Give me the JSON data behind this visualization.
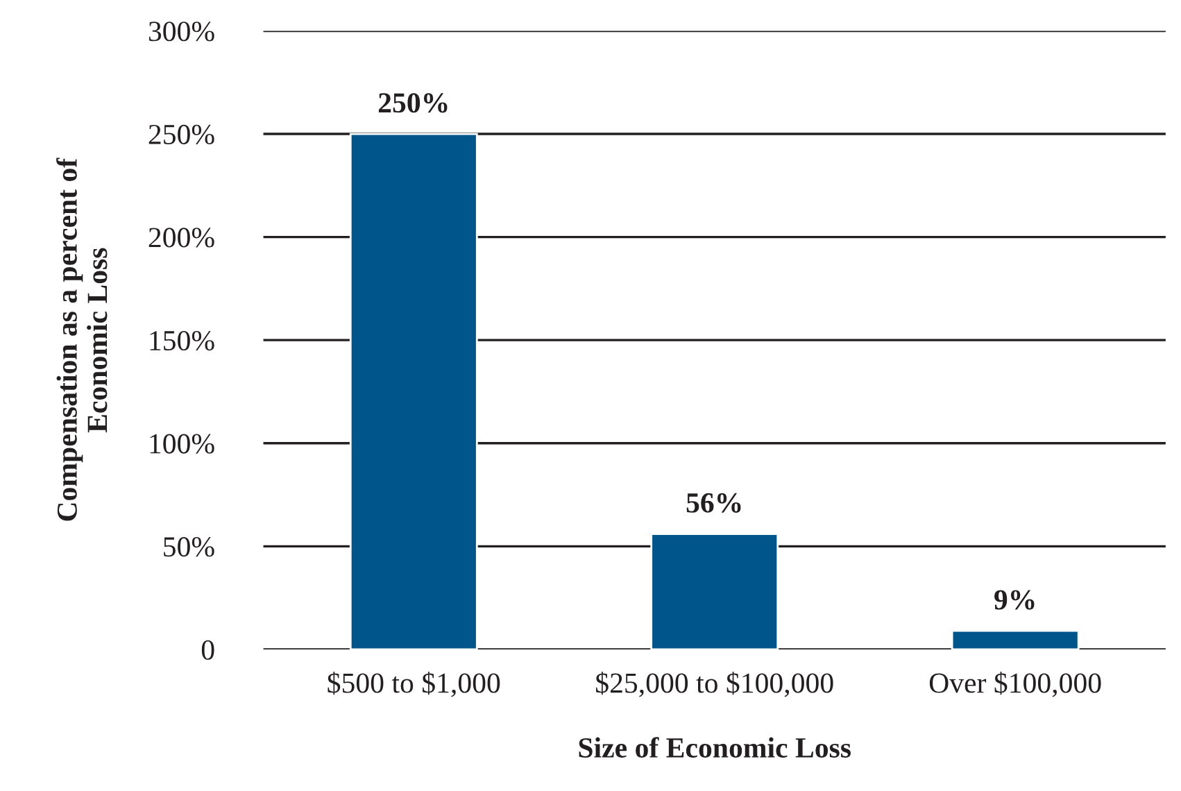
{
  "chart_data": {
    "type": "bar",
    "xlabel": "Size of Economic Loss",
    "ylabel": "Compensation as a percent of\nEconomic Loss",
    "categories": [
      "$500 to $1,000",
      "$25,000 to $100,000",
      "Over $100,000"
    ],
    "values": [
      250,
      56,
      9
    ],
    "value_labels": [
      "250%",
      "56%",
      "9%"
    ],
    "color": "#00558a",
    "ylim": [
      0,
      300
    ],
    "yticks": [
      0,
      {
        "value": 50,
        "label": "50%"
      },
      {
        "value": 100,
        "label": "100%"
      },
      {
        "value": 150,
        "label": "150%"
      },
      {
        "value": 200,
        "label": "200%"
      },
      {
        "value": 250,
        "label": "250%"
      },
      {
        "value": 300,
        "label": "300%"
      }
    ],
    "grid": "y"
  }
}
